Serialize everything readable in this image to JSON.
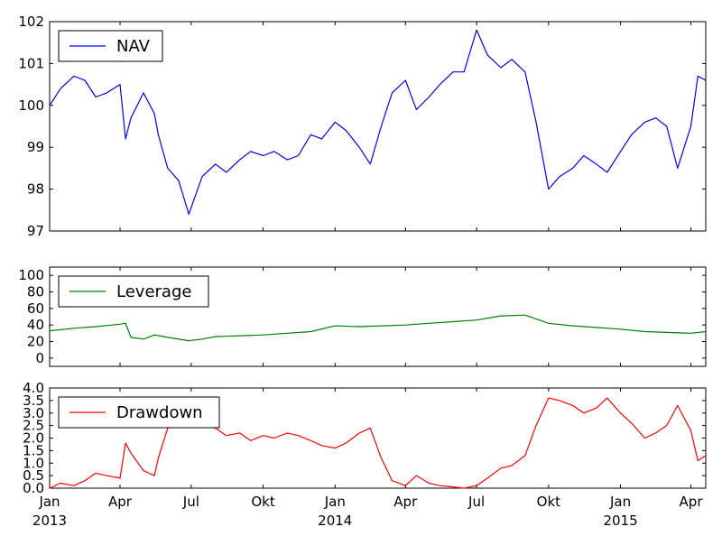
{
  "chart_data": [
    {
      "type": "line",
      "title": "",
      "ylabel": "",
      "ylim": [
        97,
        102
      ],
      "yticks": [
        "97",
        "98",
        "99",
        "100",
        "101",
        "102"
      ],
      "legend": "top-left",
      "x_range": [
        "2013-01-01",
        "2015-04-20"
      ],
      "series": [
        {
          "name": "NAV",
          "color": "#0000ff",
          "x": [
            "2013-01-01",
            "2013-01-15",
            "2013-02-01",
            "2013-02-15",
            "2013-03-01",
            "2013-03-15",
            "2013-04-01",
            "2013-04-08",
            "2013-04-15",
            "2013-05-01",
            "2013-05-15",
            "2013-05-20",
            "2013-06-01",
            "2013-06-15",
            "2013-06-28",
            "2013-07-15",
            "2013-08-01",
            "2013-08-15",
            "2013-09-01",
            "2013-09-15",
            "2013-10-01",
            "2013-10-15",
            "2013-11-01",
            "2013-11-15",
            "2013-12-01",
            "2013-12-15",
            "2014-01-01",
            "2014-01-15",
            "2014-02-01",
            "2014-02-15",
            "2014-03-01",
            "2014-03-15",
            "2014-04-01",
            "2014-04-15",
            "2014-05-01",
            "2014-05-15",
            "2014-06-01",
            "2014-06-15",
            "2014-07-01",
            "2014-07-15",
            "2014-08-01",
            "2014-08-15",
            "2014-09-01",
            "2014-09-15",
            "2014-10-01",
            "2014-10-15",
            "2014-11-01",
            "2014-11-15",
            "2014-12-01",
            "2014-12-15",
            "2015-01-01",
            "2015-01-15",
            "2015-02-01",
            "2015-02-15",
            "2015-03-01",
            "2015-03-15",
            "2015-04-01",
            "2015-04-10",
            "2015-04-20"
          ],
          "y": [
            100.0,
            100.4,
            100.7,
            100.6,
            100.2,
            100.3,
            100.5,
            99.2,
            99.7,
            100.3,
            99.8,
            99.3,
            98.5,
            98.2,
            97.4,
            98.3,
            98.6,
            98.4,
            98.7,
            98.9,
            98.8,
            98.9,
            98.7,
            98.8,
            99.3,
            99.2,
            99.6,
            99.4,
            99.0,
            98.6,
            99.5,
            100.3,
            100.6,
            99.9,
            100.2,
            100.5,
            100.8,
            100.8,
            101.8,
            101.2,
            100.9,
            101.1,
            100.8,
            99.6,
            98.0,
            98.3,
            98.5,
            98.8,
            98.6,
            98.4,
            98.9,
            99.3,
            99.6,
            99.7,
            99.5,
            98.5,
            99.5,
            100.7,
            100.6
          ]
        }
      ]
    },
    {
      "type": "line",
      "title": "",
      "ylabel": "",
      "ylim": [
        -10,
        110
      ],
      "yticks": [
        "0",
        "20",
        "40",
        "60",
        "80",
        "100"
      ],
      "legend": "top-left",
      "series": [
        {
          "name": "Leverage",
          "color": "#008000",
          "x": [
            "2013-01-01",
            "2013-02-01",
            "2013-03-01",
            "2013-04-01",
            "2013-04-08",
            "2013-04-15",
            "2013-05-01",
            "2013-05-15",
            "2013-06-01",
            "2013-06-28",
            "2013-07-15",
            "2013-08-01",
            "2013-09-01",
            "2013-10-01",
            "2013-11-01",
            "2013-12-01",
            "2014-01-01",
            "2014-02-01",
            "2014-03-01",
            "2014-04-01",
            "2014-05-01",
            "2014-06-01",
            "2014-07-01",
            "2014-08-01",
            "2014-09-01",
            "2014-10-01",
            "2014-11-01",
            "2014-12-01",
            "2015-01-01",
            "2015-02-01",
            "2015-03-01",
            "2015-04-01",
            "2015-04-20"
          ],
          "y": [
            33,
            36,
            38,
            41,
            42,
            25,
            23,
            28,
            25,
            21,
            23,
            26,
            27,
            28,
            30,
            32,
            39,
            38,
            39,
            40,
            42,
            44,
            46,
            51,
            52,
            42,
            39,
            37,
            35,
            32,
            31,
            30,
            32
          ]
        }
      ]
    },
    {
      "type": "line",
      "title": "",
      "ylabel": "",
      "ylim": [
        0,
        4
      ],
      "yticks": [
        "0.0",
        "0.5",
        "1.0",
        "1.5",
        "2.0",
        "2.5",
        "3.0",
        "3.5",
        "4.0"
      ],
      "xticks": [
        "Jan",
        "Apr",
        "Jul",
        "Okt",
        "Jan",
        "Apr",
        "Jul",
        "Okt",
        "Jan",
        "Apr"
      ],
      "year_labels": [
        "2013",
        "2014",
        "2015"
      ],
      "legend": "top-left",
      "series": [
        {
          "name": "Drawdown",
          "color": "#ff0000",
          "x": [
            "2013-01-01",
            "2013-01-15",
            "2013-02-01",
            "2013-02-15",
            "2013-03-01",
            "2013-03-15",
            "2013-04-01",
            "2013-04-08",
            "2013-04-15",
            "2013-05-01",
            "2013-05-15",
            "2013-05-20",
            "2013-06-01",
            "2013-06-15",
            "2013-06-28",
            "2013-07-15",
            "2013-08-01",
            "2013-08-15",
            "2013-09-01",
            "2013-09-15",
            "2013-10-01",
            "2013-10-15",
            "2013-11-01",
            "2013-11-15",
            "2013-12-01",
            "2013-12-15",
            "2014-01-01",
            "2014-01-15",
            "2014-02-01",
            "2014-02-15",
            "2014-03-01",
            "2014-03-15",
            "2014-04-01",
            "2014-04-15",
            "2014-05-01",
            "2014-05-15",
            "2014-06-01",
            "2014-06-15",
            "2014-07-01",
            "2014-07-15",
            "2014-08-01",
            "2014-08-15",
            "2014-09-01",
            "2014-09-15",
            "2014-10-01",
            "2014-10-15",
            "2014-11-01",
            "2014-11-15",
            "2014-12-01",
            "2014-12-15",
            "2015-01-01",
            "2015-01-15",
            "2015-02-01",
            "2015-02-15",
            "2015-03-01",
            "2015-03-15",
            "2015-04-01",
            "2015-04-10",
            "2015-04-20"
          ],
          "y": [
            0.0,
            0.2,
            0.1,
            0.3,
            0.6,
            0.5,
            0.4,
            1.8,
            1.4,
            0.7,
            0.5,
            1.2,
            2.4,
            2.6,
            2.8,
            2.5,
            2.4,
            2.1,
            2.2,
            1.9,
            2.1,
            2.0,
            2.2,
            2.1,
            1.9,
            1.7,
            1.6,
            1.8,
            2.2,
            2.4,
            1.2,
            0.3,
            0.1,
            0.5,
            0.2,
            0.1,
            0.05,
            0.0,
            0.1,
            0.4,
            0.8,
            0.9,
            1.3,
            2.5,
            3.6,
            3.5,
            3.3,
            3.0,
            3.2,
            3.6,
            3.0,
            2.6,
            2.0,
            2.2,
            2.5,
            3.3,
            2.3,
            1.1,
            1.3
          ]
        }
      ]
    }
  ]
}
